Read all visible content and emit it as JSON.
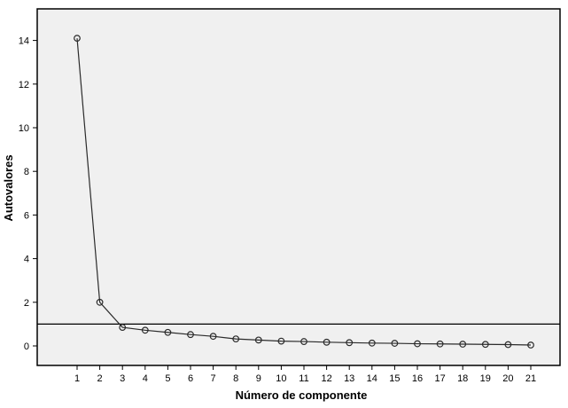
{
  "chart_data": {
    "type": "line",
    "title": "",
    "xlabel": "Número de componente",
    "ylabel": "Autovalores",
    "x": [
      1,
      2,
      3,
      4,
      5,
      6,
      7,
      8,
      9,
      10,
      11,
      12,
      13,
      14,
      15,
      16,
      17,
      18,
      19,
      20,
      21
    ],
    "series": [
      {
        "name": "Autovalores",
        "values": [
          14.1,
          2.0,
          0.85,
          0.72,
          0.62,
          0.52,
          0.44,
          0.32,
          0.27,
          0.22,
          0.2,
          0.17,
          0.15,
          0.13,
          0.12,
          0.1,
          0.09,
          0.08,
          0.07,
          0.06,
          0.04
        ]
      }
    ],
    "reference_line_y": 1,
    "yticks": [
      0,
      2,
      4,
      6,
      8,
      10,
      12,
      14
    ],
    "ylim": [
      -0.9,
      15.5
    ],
    "grid": false,
    "legend_position": "none",
    "colors": {
      "plot_background": "#f0f0f0",
      "frame": "#000000",
      "line": "#2b2b2b",
      "marker_stroke": "#2b2b2b",
      "reference_line": "#000000",
      "text": "#000000"
    }
  }
}
